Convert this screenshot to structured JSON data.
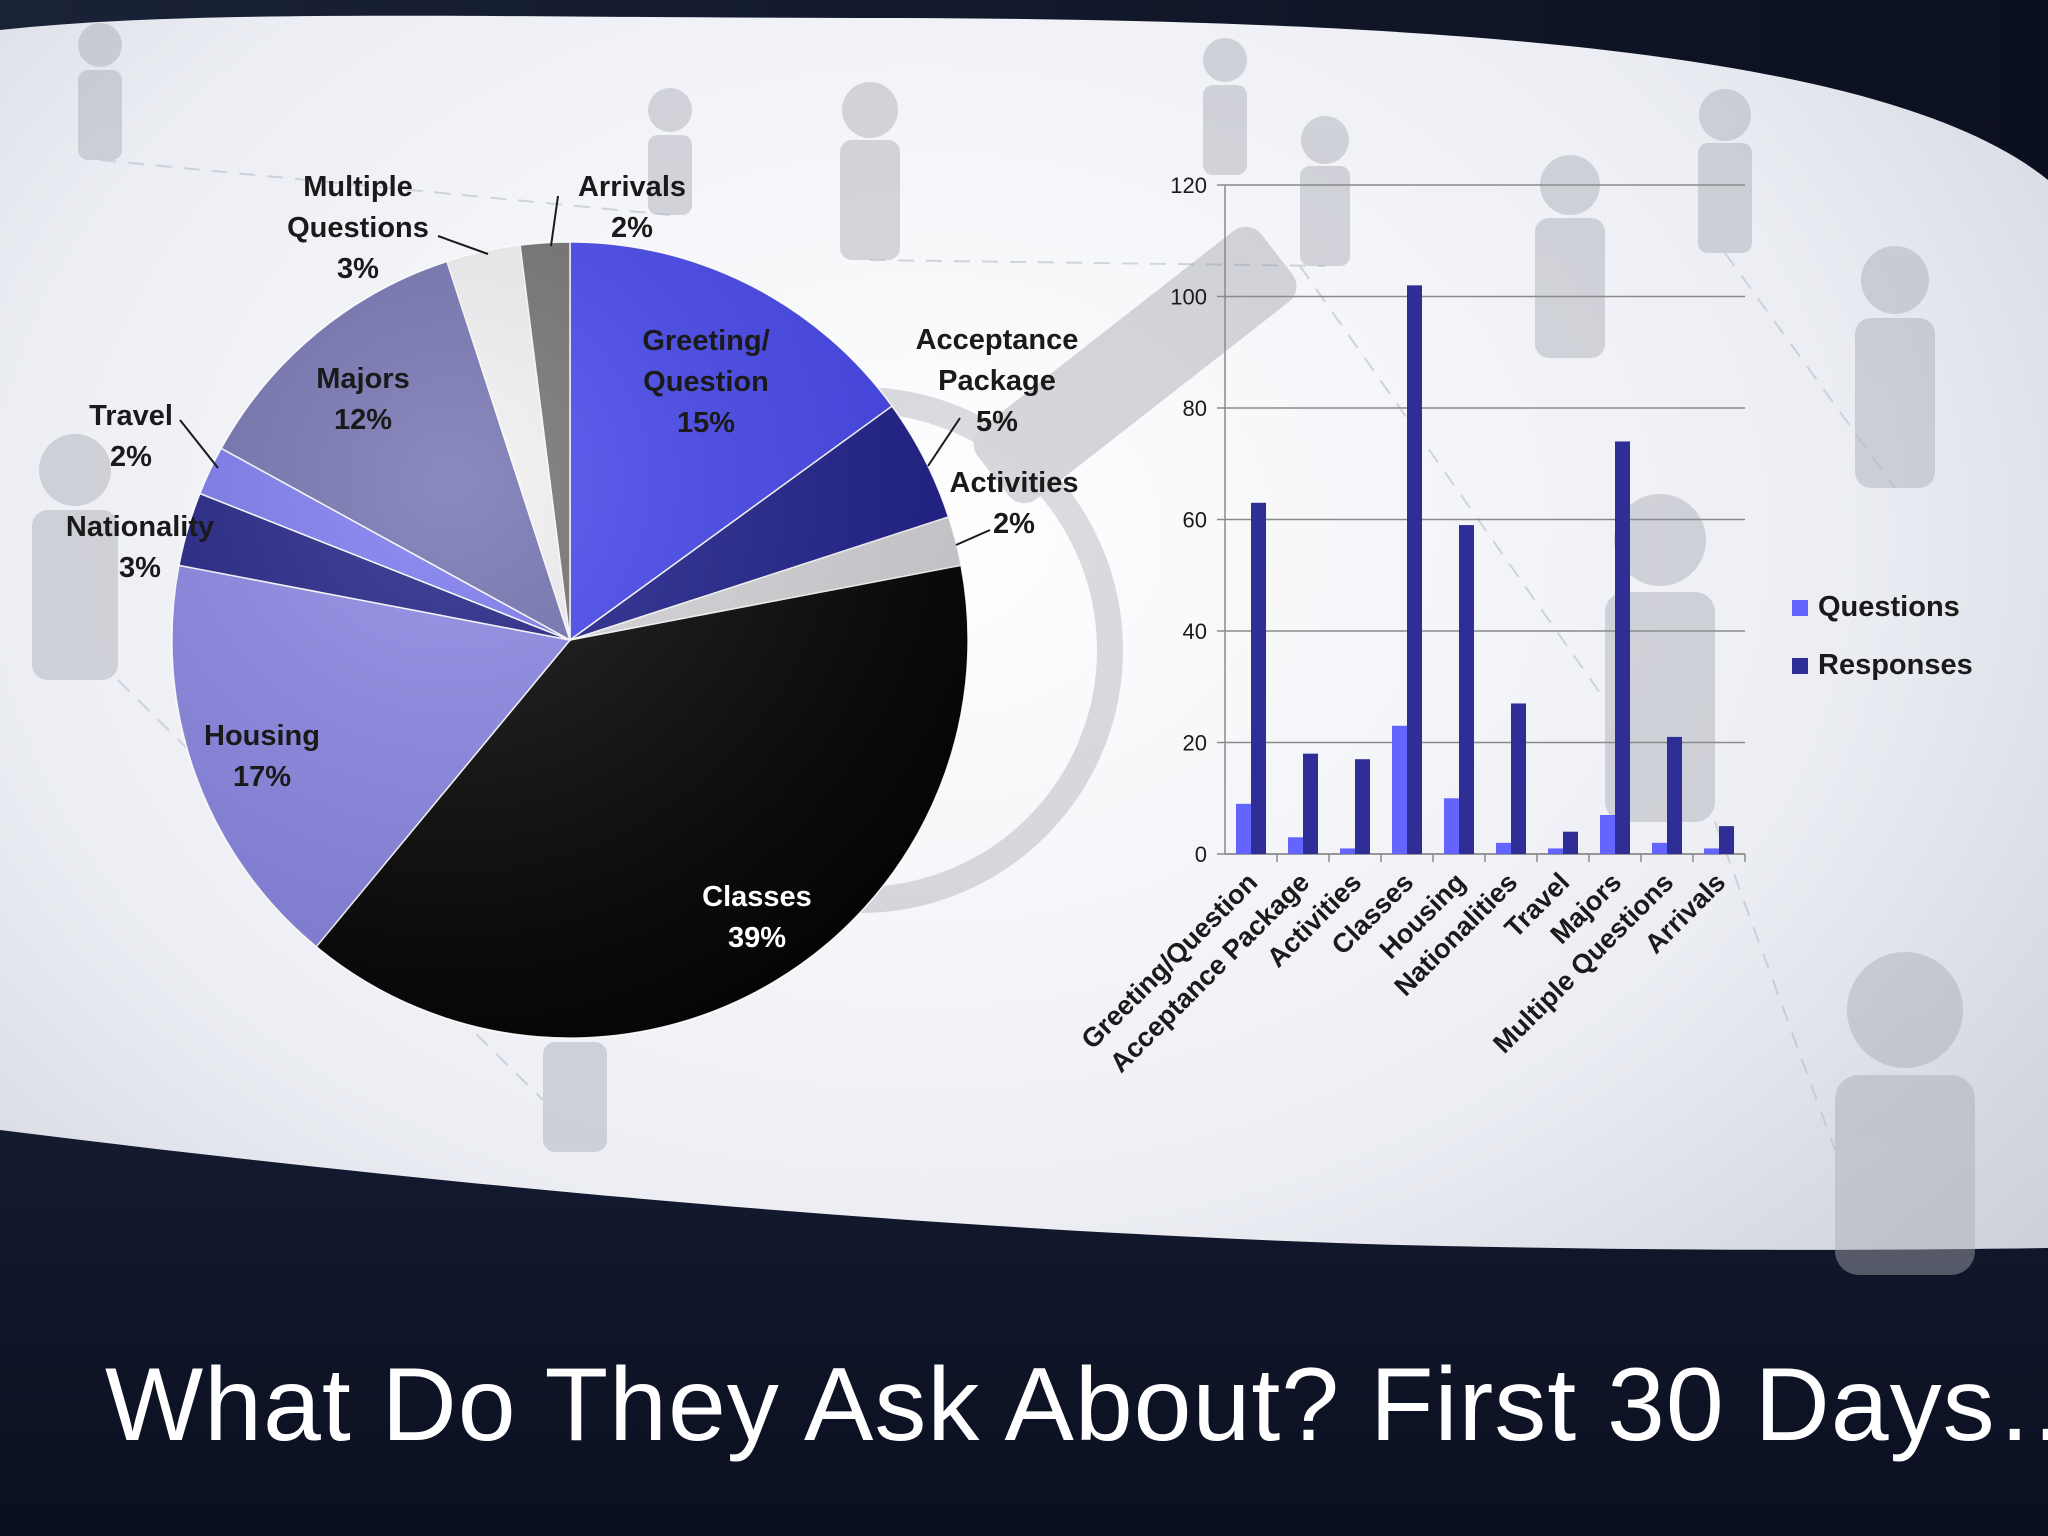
{
  "slide": {
    "title": "What Do They Ask About?  First 30 Days…"
  },
  "colors": {
    "background_dark": "#0e1428",
    "background_light": "#eef0f5",
    "questions": "#6464ff",
    "responses": "#2e2e96",
    "gridline": "#8a8a8a"
  },
  "chart_data": [
    {
      "type": "pie",
      "title": "",
      "slices": [
        {
          "label": "Greeting/\nQuestion",
          "percent_label": "15%",
          "value": 15,
          "color": "#4444ee"
        },
        {
          "label": "Acceptance\nPackage",
          "percent_label": "5%",
          "value": 5,
          "color": "#1e1e8c"
        },
        {
          "label": "Activities",
          "percent_label": "2%",
          "value": 2,
          "color": "#d8d8dc"
        },
        {
          "label": "Classes",
          "percent_label": "39%",
          "value": 39,
          "color": "#030303"
        },
        {
          "label": "Housing",
          "percent_label": "17%",
          "value": 17,
          "color": "#8a86e6"
        },
        {
          "label": "Nationality",
          "percent_label": "3%",
          "value": 3,
          "color": "#1e1e84"
        },
        {
          "label": "Travel",
          "percent_label": "2%",
          "value": 2,
          "color": "#7a78f0"
        },
        {
          "label": "Majors",
          "percent_label": "12%",
          "value": 12,
          "color": "#7070b0"
        },
        {
          "label": "Multiple\nQuestions",
          "percent_label": "3%",
          "value": 3,
          "color": "#f2f2f4"
        },
        {
          "label": "Arrivals",
          "percent_label": "2%",
          "value": 2,
          "color": "#707070"
        }
      ]
    },
    {
      "type": "bar",
      "title": "",
      "xlabel": "",
      "ylabel": "",
      "ylim": [
        0,
        120
      ],
      "yticks": [
        0,
        20,
        40,
        60,
        80,
        100,
        120
      ],
      "grid": true,
      "legend_position": "right",
      "categories": [
        "Greeting/Question",
        "Acceptance Package",
        "Activities",
        "Classes",
        "Housing",
        "Nationalities",
        "Travel",
        "Majors",
        "Multiple Questions",
        "Arrivals"
      ],
      "series": [
        {
          "name": "Questions",
          "values": [
            9,
            3,
            1,
            23,
            10,
            2,
            1,
            7,
            2,
            1
          ],
          "color": "#6464ff"
        },
        {
          "name": "Responses",
          "values": [
            63,
            18,
            17,
            102,
            59,
            27,
            4,
            74,
            21,
            5
          ],
          "color": "#2e2e96"
        }
      ]
    }
  ]
}
